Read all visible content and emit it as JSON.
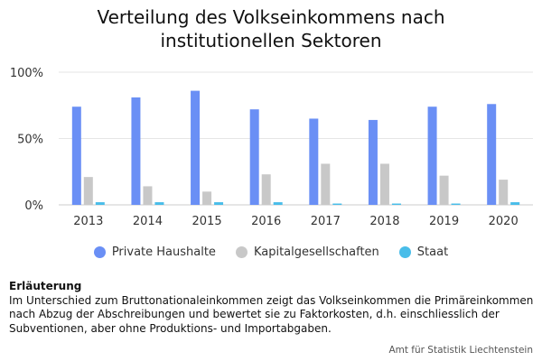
{
  "title_line1": "Verteilung des Volkseinkommens nach",
  "title_line2": "institutionellen Sektoren",
  "note": {
    "heading": "Erläuterung",
    "text": "Im Unterschied zum Bruttonationaleinkommen zeigt das Volkseinkommen die Primäreinkommen nach Abzug der Abschreibungen und bewertet sie zu Faktorkosten, d.h. einschliesslich der Subventionen, aber ohne Produktions- und Importabgaben."
  },
  "source": "Amt für Statistik Liechtenstein",
  "chart_data": {
    "type": "bar",
    "title": "Verteilung des Volkseinkommens nach institutionellen Sektoren",
    "categories": [
      "2013",
      "2014",
      "2015",
      "2016",
      "2017",
      "2018",
      "2019",
      "2020"
    ],
    "series": [
      {
        "name": "Private Haushalte",
        "color": "#6a8ff5",
        "values": [
          74,
          81,
          86,
          72,
          65,
          64,
          74,
          76
        ]
      },
      {
        "name": "Kapitalgesellschaften",
        "color": "#c8c8c8",
        "values": [
          21,
          14,
          10,
          23,
          31,
          31,
          22,
          19
        ]
      },
      {
        "name": "Staat",
        "color": "#49bde9",
        "values": [
          2,
          2,
          2,
          2,
          1,
          1,
          1,
          2
        ]
      }
    ],
    "yticks": [
      "0%",
      "50%",
      "100%"
    ],
    "ylim": [
      0,
      100
    ],
    "xlabel": "",
    "ylabel": "",
    "grid": true,
    "legend": "bottom"
  }
}
